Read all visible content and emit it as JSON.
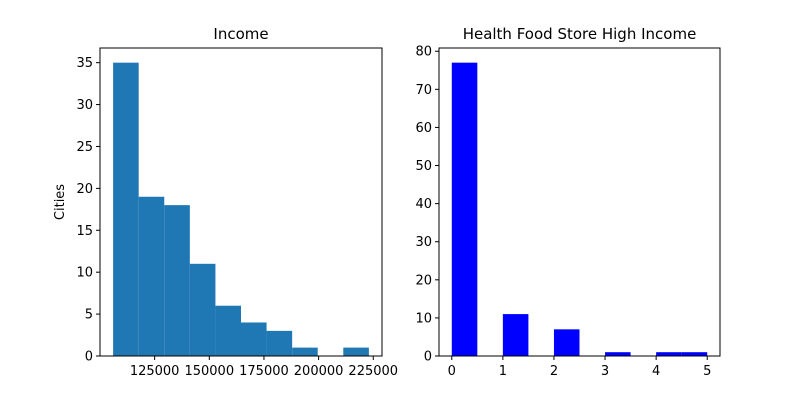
{
  "chart_data": [
    {
      "type": "bar",
      "title": "Income",
      "xlabel": "",
      "ylabel": "Cities",
      "bin_edges": [
        106000,
        117700,
        129400,
        141100,
        152800,
        164500,
        176200,
        187900,
        199600,
        211300,
        223000
      ],
      "values": [
        35,
        19,
        18,
        11,
        6,
        4,
        3,
        1,
        0,
        1
      ],
      "xlim": [
        100000,
        229000
      ],
      "ylim": [
        0,
        36.75
      ],
      "xticks": [
        125000,
        150000,
        175000,
        200000,
        225000
      ],
      "xtick_labels": [
        "125000",
        "150000",
        "175000",
        "200000",
        "225000"
      ],
      "yticks": [
        0,
        5,
        10,
        15,
        20,
        25,
        30,
        35
      ],
      "ytick_labels": [
        "0",
        "5",
        "10",
        "15",
        "20",
        "25",
        "30",
        "35"
      ],
      "color": "#1f77b4",
      "grid": false
    },
    {
      "type": "bar",
      "title": "Health Food Store High Income",
      "xlabel": "",
      "ylabel": "",
      "bin_edges": [
        0,
        0.5,
        1,
        1.5,
        2,
        2.5,
        3,
        3.5,
        4,
        4.5,
        5
      ],
      "values": [
        77,
        0,
        11,
        0,
        7,
        0,
        1,
        0,
        1,
        1
      ],
      "xlim": [
        -0.25,
        5.25
      ],
      "ylim": [
        0,
        80.85
      ],
      "xticks": [
        0,
        1,
        2,
        3,
        4,
        5
      ],
      "xtick_labels": [
        "0",
        "1",
        "2",
        "3",
        "4",
        "5"
      ],
      "yticks": [
        0,
        10,
        20,
        30,
        40,
        50,
        60,
        70,
        80
      ],
      "ytick_labels": [
        "0",
        "10",
        "20",
        "30",
        "40",
        "50",
        "60",
        "70",
        "80"
      ],
      "color": "#0000ff",
      "grid": false
    }
  ]
}
